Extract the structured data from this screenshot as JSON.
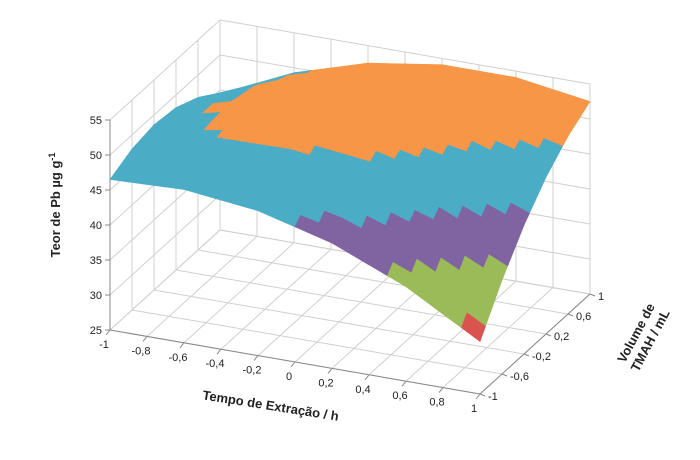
{
  "chart_data": {
    "type": "surface",
    "zlabel": "Teor de Pb µg g",
    "zlabel_sup": "-1",
    "xlabel": "Tempo de Extração / h",
    "ylabel": [
      "Volume de",
      "TMAH / mL"
    ],
    "xlim": [
      -1,
      1
    ],
    "ylim": [
      -1,
      1
    ],
    "zlim": [
      25,
      55
    ],
    "xticks": [
      -1,
      {
        "value": -0.8,
        "label": "-0,8"
      },
      {
        "value": -0.6,
        "label": "-0,6"
      },
      {
        "value": -0.4,
        "label": "-0,4"
      },
      {
        "value": -0.2,
        "label": "-0,2"
      },
      0,
      {
        "value": 0.2,
        "label": "0,2"
      },
      {
        "value": 0.4,
        "label": "0,4"
      },
      {
        "value": 0.6,
        "label": "0,6"
      },
      {
        "value": 0.8,
        "label": "0,8"
      },
      1
    ],
    "yticks": [
      -1,
      {
        "value": -0.6,
        "label": "-0,6"
      },
      {
        "value": -0.2,
        "label": "-0,2"
      },
      {
        "value": 0.2,
        "label": "0,2"
      },
      {
        "value": 0.6,
        "label": "0,6"
      },
      1
    ],
    "zticks": [
      25,
      30,
      35,
      40,
      45,
      50,
      55
    ],
    "band_colors": [
      "#4f81bd",
      "#d9534f",
      "#9bbb59",
      "#8064a2",
      "#4bacc6",
      "#f79646"
    ],
    "grid": true,
    "x": [
      -1,
      -0.6,
      -0.2,
      0.2,
      0.6,
      1
    ],
    "y": [
      -1,
      -0.6,
      -0.2,
      0.2,
      0.6,
      1
    ],
    "z": [
      [
        46.5,
        46.9,
        45.7,
        42.9,
        38.5,
        32.5
      ],
      [
        48.0,
        49.3,
        49.0,
        47.1,
        43.5,
        38.4
      ],
      [
        48.6,
        50.7,
        51.3,
        50.3,
        47.6,
        43.4
      ],
      [
        48.2,
        51.2,
        52.7,
        52.5,
        50.7,
        47.4
      ],
      [
        46.8,
        50.7,
        53.1,
        53.8,
        52.9,
        50.4
      ],
      [
        44.5,
        49.3,
        52.5,
        54.1,
        54.1,
        52.5
      ]
    ]
  }
}
